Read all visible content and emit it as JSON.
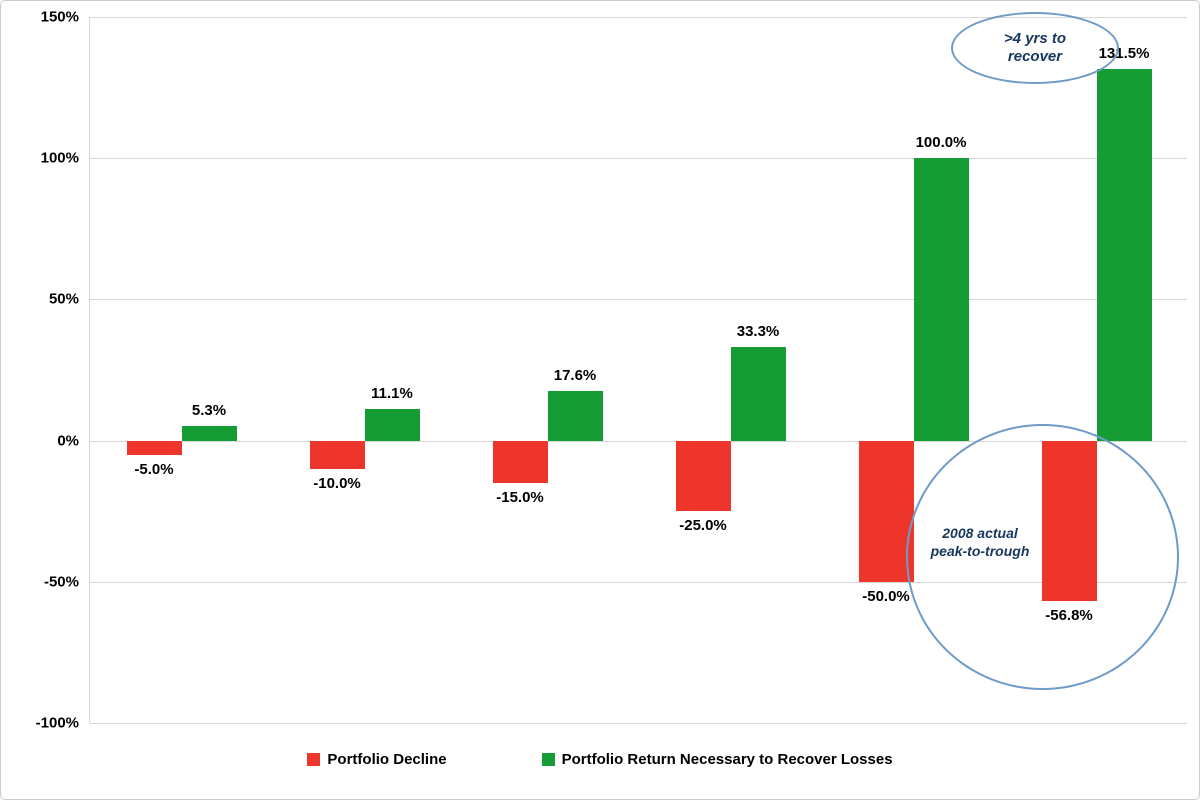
{
  "chart_data": {
    "type": "bar",
    "title": "",
    "categories": [
      "pair-1",
      "pair-2",
      "pair-3",
      "pair-4",
      "pair-5",
      "pair-6"
    ],
    "series": [
      {
        "name": "Portfolio Decline",
        "color": "#ee352b",
        "values": [
          -5.0,
          -10.0,
          -15.0,
          -25.0,
          -50.0,
          -56.8
        ],
        "labels": [
          "-5.0%",
          "-10.0%",
          "-15.0%",
          "-25.0%",
          "-50.0%",
          "-56.8%"
        ]
      },
      {
        "name": "Portfolio Return Necessary to Recover Losses",
        "color": "#169c35",
        "values": [
          5.3,
          11.1,
          17.6,
          33.3,
          100.0,
          131.5
        ],
        "labels": [
          "5.3%",
          "11.1%",
          "17.6%",
          "33.3%",
          "100.0%",
          "131.5%"
        ]
      }
    ],
    "ylim": [
      -100,
      150
    ],
    "yticks": [
      150,
      100,
      50,
      0,
      -50,
      -100
    ],
    "ytick_labels": [
      "150%",
      "100%",
      "50%",
      "0%",
      "-50%",
      "-100%"
    ],
    "grid": true,
    "legend_position": "bottom"
  },
  "annotations": {
    "recover_note": ">4 yrs to recover",
    "trough_note": "2008 actual peak-to-trough"
  },
  "colors": {
    "decline": "#ee352b",
    "recovery": "#169c35",
    "annotation_blue": "#6e9bc8",
    "gridline": "#d6d6d6"
  }
}
